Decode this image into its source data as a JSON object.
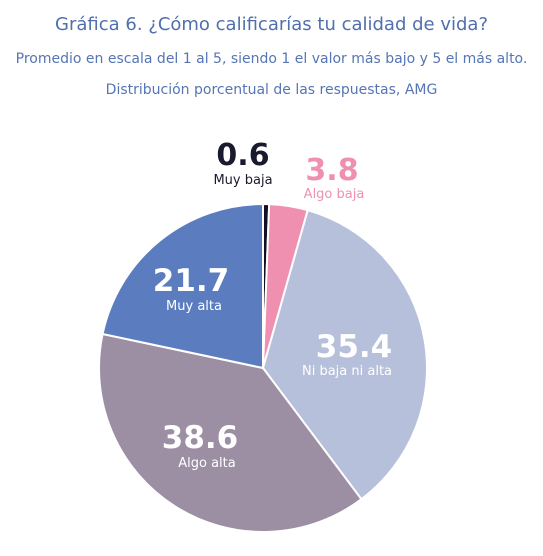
{
  "header": {
    "title": "Gráfica 6. ¿Cómo calificarías tu calidad de vida?",
    "subtitle": "Promedio en escala del 1 al 5, siendo 1 el valor más bajo y 5 el más alto.",
    "subtitle2": "Distribución porcentual de las respuestas, AMG"
  },
  "chart_data": {
    "type": "pie",
    "title": "Gráfica 6. ¿Cómo calificarías tu calidad de vida?",
    "categories": [
      "Muy baja",
      "Algo baja",
      "Ni baja ni alta",
      "Algo alta",
      "Muy alta"
    ],
    "values": [
      0.6,
      3.8,
      35.4,
      38.6,
      21.7
    ],
    "value_labels": [
      "0.6",
      "3.8",
      "35.4",
      "38.6",
      "21.7"
    ],
    "colors": [
      "#111122",
      "#ef90b0",
      "#b6c0db",
      "#9c8ea3",
      "#5b7dc0"
    ],
    "start_angle_deg": 0,
    "direction": "clockwise",
    "legend": "none"
  }
}
